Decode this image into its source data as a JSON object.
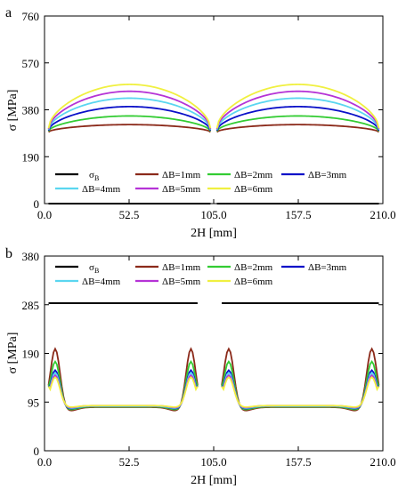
{
  "chart_data": [
    {
      "type": "line",
      "panel_label": "a",
      "xlabel": "2H [mm]",
      "ylabel": "σ [MPa]",
      "xlim": [
        0,
        210
      ],
      "ylim": [
        0,
        760
      ],
      "xticks": [
        "0.0",
        "52.5",
        "105.0",
        "157.5",
        "210.0"
      ],
      "yticks": [
        "0",
        "190",
        "380",
        "570",
        "760"
      ],
      "segments": [
        [
          2.5,
          103
        ],
        [
          107,
          207.5
        ]
      ],
      "series": [
        {
          "name": "σ",
          "name_sub": "B",
          "color": "#000000",
          "kind": "flat",
          "value": 0
        },
        {
          "name": "ΔB=1mm",
          "color": "#8b2a1a",
          "kind": "arch",
          "base": 290,
          "peak": 320
        },
        {
          "name": "ΔB=2mm",
          "color": "#33cc33",
          "kind": "arch",
          "base": 293,
          "peak": 355
        },
        {
          "name": "ΔB=3mm",
          "color": "#0a10c8",
          "kind": "arch",
          "base": 296,
          "peak": 393
        },
        {
          "name": "ΔB=4mm",
          "color": "#5ad6f0",
          "kind": "arch",
          "base": 299,
          "peak": 427
        },
        {
          "name": "ΔB=5mm",
          "color": "#b533d6",
          "kind": "arch",
          "base": 302,
          "peak": 455
        },
        {
          "name": "ΔB=6mm",
          "color": "#f0f040",
          "kind": "arch",
          "base": 305,
          "peak": 483
        }
      ],
      "legend_position": "bottom"
    },
    {
      "type": "line",
      "panel_label": "b",
      "xlabel": "2H [mm]",
      "ylabel": "σ [MPa]",
      "xlim": [
        0,
        210
      ],
      "ylim": [
        0,
        380
      ],
      "xticks": [
        "0.0",
        "52.5",
        "105.0",
        "157.5",
        "210.0"
      ],
      "yticks": [
        "0",
        "95",
        "190",
        "285",
        "380"
      ],
      "segments": [
        [
          2.5,
          95
        ],
        [
          110,
          207.5
        ]
      ],
      "series": [
        {
          "name": "σ",
          "name_sub": "B",
          "color": "#000000",
          "kind": "flat",
          "value": 288
        },
        {
          "name": "ΔB=1mm",
          "color": "#8b2a1a",
          "kind": "wave",
          "start": 128,
          "peak": 200,
          "trough": 78,
          "mid": 85
        },
        {
          "name": "ΔB=2mm",
          "color": "#33cc33",
          "kind": "wave",
          "start": 130,
          "peak": 175,
          "trough": 80,
          "mid": 86
        },
        {
          "name": "ΔB=3mm",
          "color": "#0a10c8",
          "kind": "wave",
          "start": 132,
          "peak": 158,
          "trough": 82,
          "mid": 87
        },
        {
          "name": "ΔB=4mm",
          "color": "#5ad6f0",
          "kind": "wave",
          "start": 133,
          "peak": 153,
          "trough": 83,
          "mid": 87
        },
        {
          "name": "ΔB=5mm",
          "color": "#b533d6",
          "kind": "wave",
          "start": 135,
          "peak": 148,
          "trough": 84,
          "mid": 88
        },
        {
          "name": "ΔB=6mm",
          "color": "#f0f040",
          "kind": "wave",
          "start": 137,
          "peak": 144,
          "trough": 85,
          "mid": 88
        }
      ],
      "legend_position": "top"
    }
  ]
}
